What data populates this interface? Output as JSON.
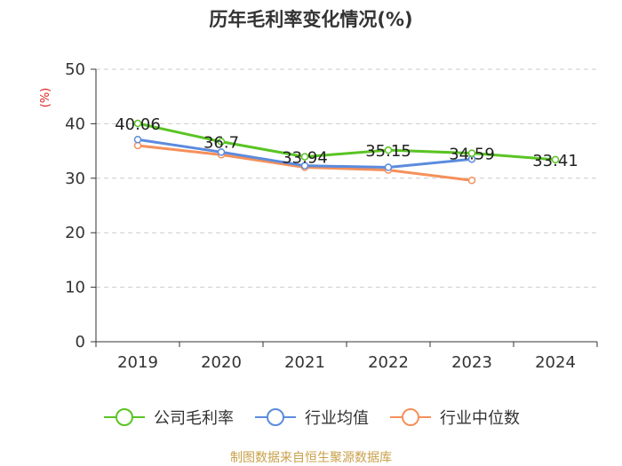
{
  "chart_data": {
    "type": "line",
    "title": "历年毛利率变化情况(%)",
    "ylabel": "(%)",
    "categories": [
      "2019",
      "2020",
      "2021",
      "2022",
      "2023",
      "2024"
    ],
    "ylim": [
      0,
      50
    ],
    "yticks": [
      0,
      10,
      20,
      30,
      40,
      50
    ],
    "grid": true,
    "legend_position": "bottom",
    "series": [
      {
        "name": "公司毛利率",
        "color": "#5ac423",
        "values": [
          40.06,
          36.7,
          33.94,
          35.15,
          34.59,
          33.41
        ],
        "data_labels": [
          "40.06",
          "36.7",
          "33.94",
          "35.15",
          "34.59",
          "33.41"
        ]
      },
      {
        "name": "行业均值",
        "color": "#5b8bde",
        "values": [
          37.1,
          34.8,
          32.3,
          32.0,
          33.5,
          null
        ]
      },
      {
        "name": "行业中位数",
        "color": "#f5905a",
        "values": [
          36.0,
          34.3,
          32.0,
          31.5,
          29.6,
          null
        ]
      }
    ]
  },
  "source": "制图数据来自恒生聚源数据库"
}
